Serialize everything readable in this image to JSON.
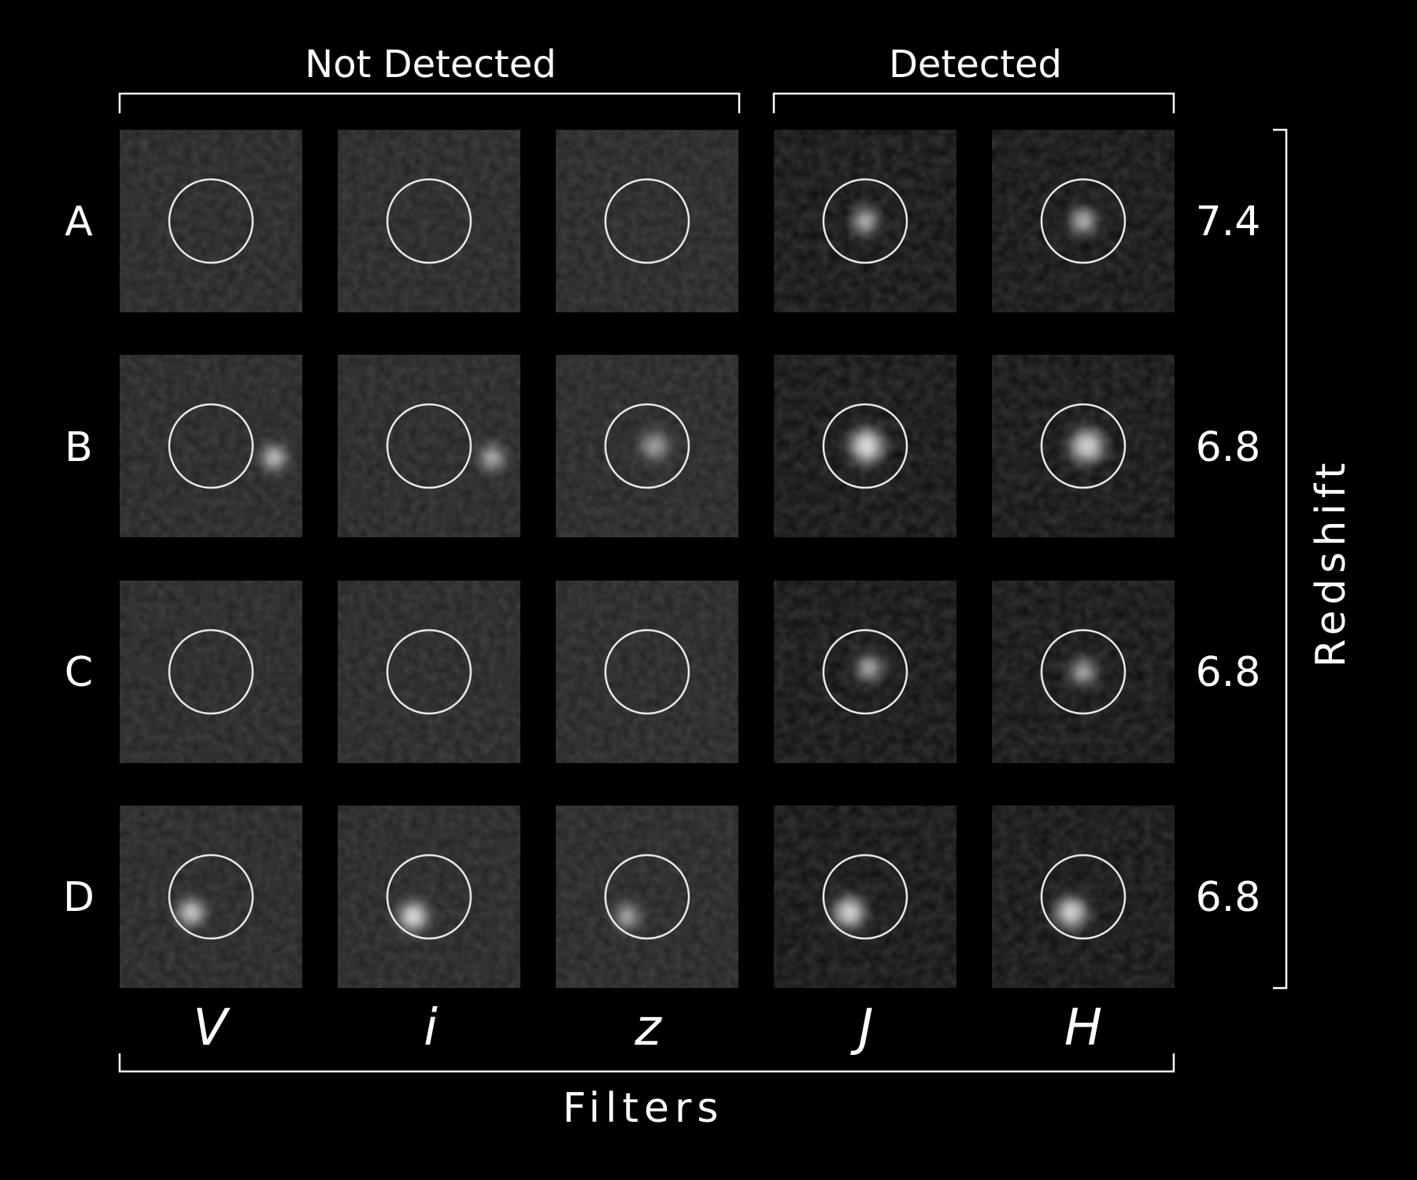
{
  "groups": {
    "not_detected": "Not Detected",
    "detected": "Detected"
  },
  "rows": [
    {
      "label": "A",
      "redshift": "7.4"
    },
    {
      "label": "B",
      "redshift": "6.8"
    },
    {
      "label": "C",
      "redshift": "6.8"
    },
    {
      "label": "D",
      "redshift": "6.8"
    }
  ],
  "filters": [
    {
      "label": "V",
      "color": "#f5d21e"
    },
    {
      "label": "i",
      "color": "#f07828"
    },
    {
      "label": "z",
      "color": "#f0501e"
    },
    {
      "label": "J",
      "color": "#e6281e"
    },
    {
      "label": "H",
      "color": "#d2231e"
    }
  ],
  "axis": {
    "filters_title": "Filters",
    "redshift_title": "Redshift"
  },
  "colors": {
    "background": "#000000",
    "text": "#ffffff",
    "aperture_circle": "#e8e8e8"
  }
}
